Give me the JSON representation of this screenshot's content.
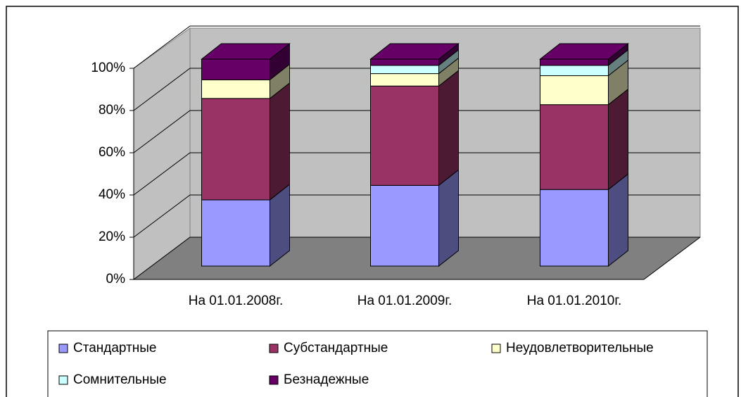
{
  "chart_data": {
    "type": "bar",
    "stacked": true,
    "categories": [
      "На 01.01.2008г.",
      "На 01.01.2009г.",
      "На 01.01.2010г."
    ],
    "series": [
      {
        "name": "Стандартные",
        "color": "#9999FF",
        "values": [
          32,
          39,
          37
        ]
      },
      {
        "name": "Субстандартные",
        "color": "#993366",
        "values": [
          49,
          48,
          41
        ]
      },
      {
        "name": "Неудовлетворительные",
        "color": "#FFFFCC",
        "values": [
          9,
          6,
          14
        ]
      },
      {
        "name": "Сомнительные",
        "color": "#CCFFFF",
        "values": [
          0,
          4,
          5
        ]
      },
      {
        "name": "Безнадежные",
        "color": "#660066",
        "values": [
          10,
          3,
          3
        ]
      }
    ],
    "ylim": [
      0,
      100
    ],
    "yticks": [
      {
        "value": 0,
        "label": "0%"
      },
      {
        "value": 20,
        "label": "20%"
      },
      {
        "value": 40,
        "label": "40%"
      },
      {
        "value": 60,
        "label": "60%"
      },
      {
        "value": 80,
        "label": "80%"
      },
      {
        "value": 100,
        "label": "100%"
      }
    ],
    "grid": true,
    "legend": "bottom"
  }
}
